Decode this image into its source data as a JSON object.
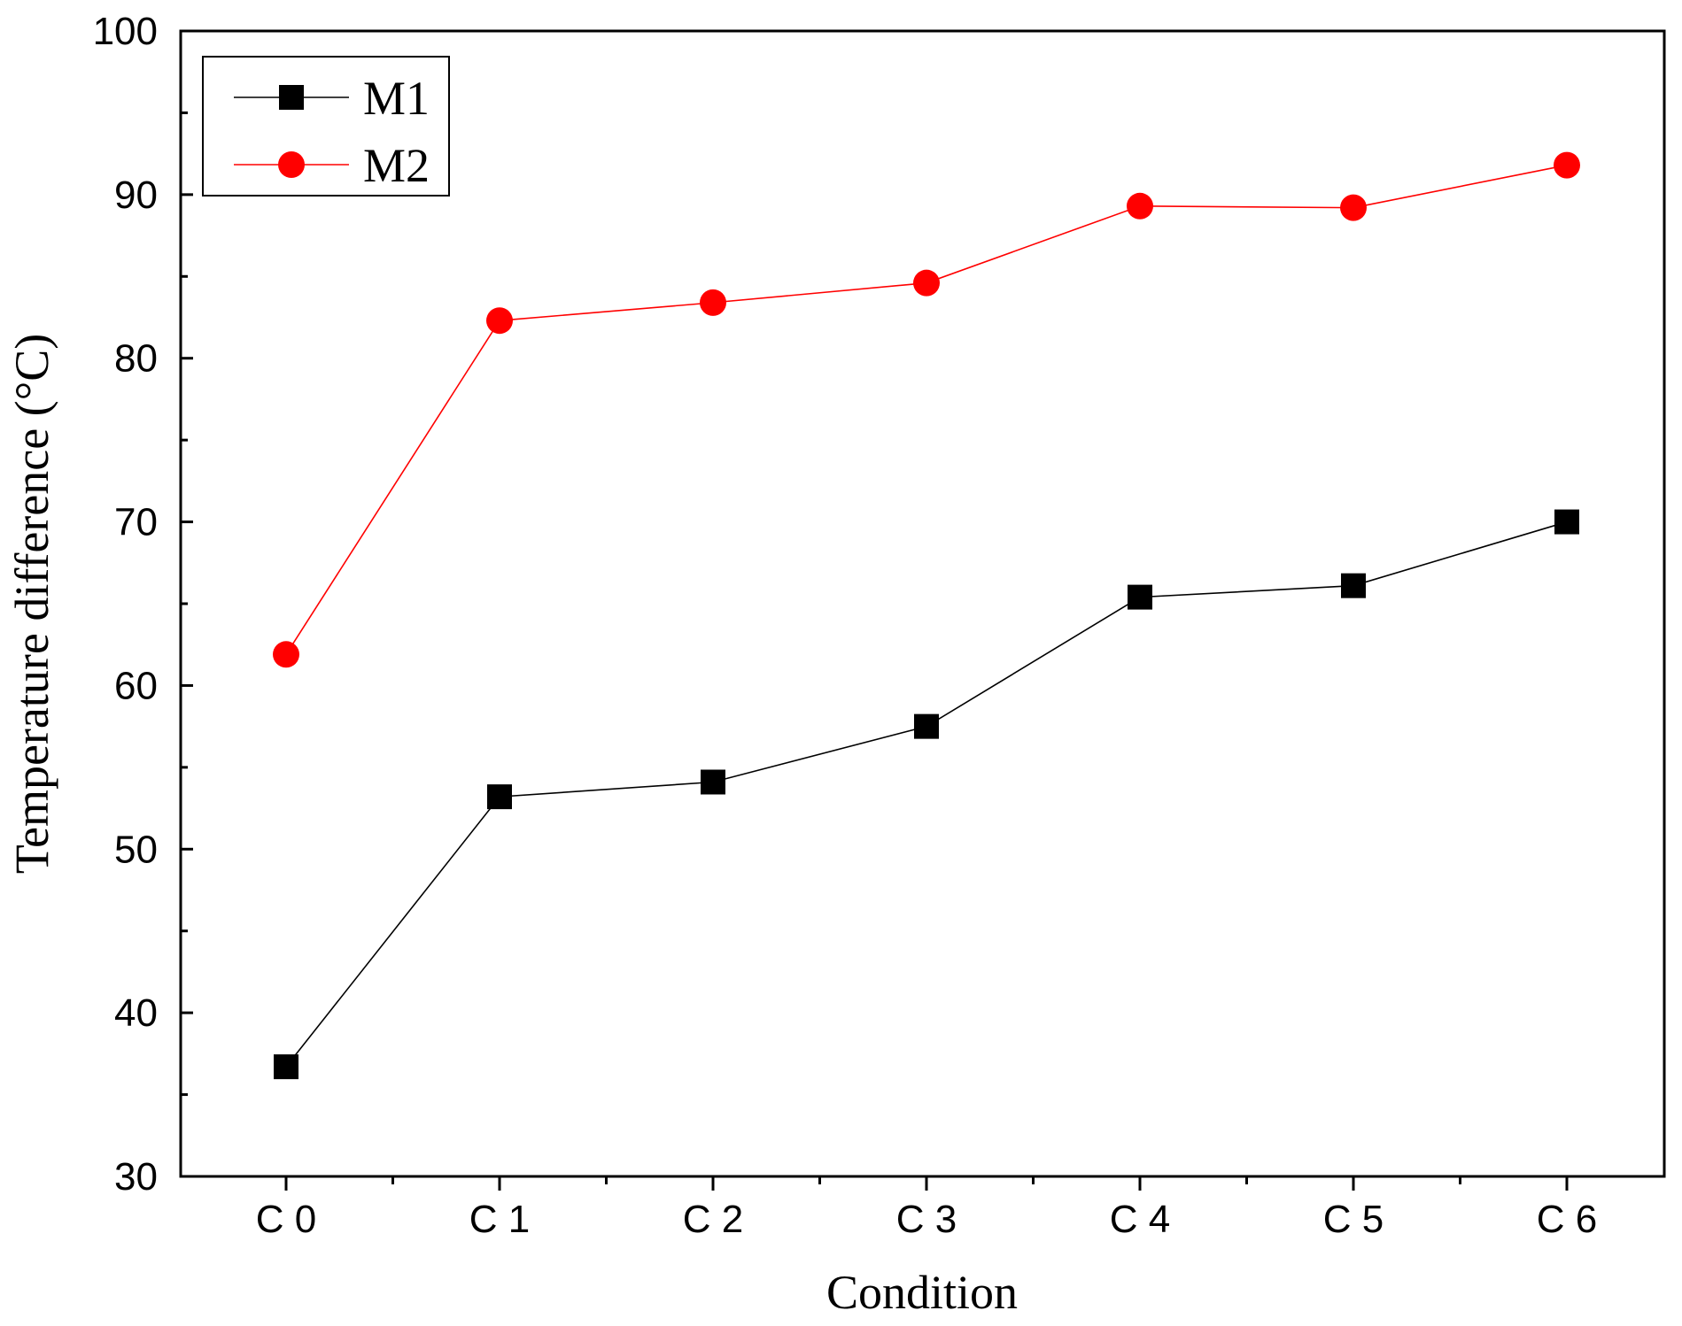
{
  "chart_data": {
    "type": "line",
    "categories": [
      "C 0",
      "C 1",
      "C 2",
      "C 3",
      "C 4",
      "C 5",
      "C 6"
    ],
    "series": [
      {
        "name": "M1",
        "color": "#000000",
        "marker": "square",
        "values": [
          36.7,
          53.2,
          54.1,
          57.5,
          65.4,
          66.1,
          70.0
        ]
      },
      {
        "name": "M2",
        "color": "#ff0000",
        "marker": "circle",
        "values": [
          61.9,
          82.3,
          83.4,
          84.6,
          89.3,
          89.2,
          91.8
        ]
      }
    ],
    "xlabel": "Condition",
    "ylabel": "Temperature difference (°C)",
    "ylim": [
      30,
      100
    ],
    "yticks": [
      30,
      40,
      50,
      60,
      70,
      80,
      90,
      100
    ],
    "ytick_labels": [
      "30",
      "40",
      "50",
      "60",
      "70",
      "80",
      "90",
      "100"
    ],
    "grid": false,
    "legend_position": "top-left"
  }
}
